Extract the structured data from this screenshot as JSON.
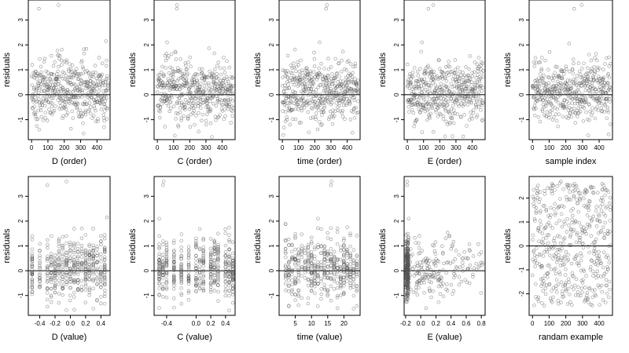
{
  "chart_data": [
    {
      "type": "scatter",
      "xlabel": "D (order)",
      "ylabel": "residuals",
      "xlim": [
        -20,
        480
      ],
      "ylim": [
        -1.8,
        3.8
      ],
      "xticks": [
        "0",
        "100",
        "200",
        "300",
        "400"
      ],
      "yticks": [
        "-1",
        "0",
        "1",
        "2",
        "3"
      ],
      "reference_line_y": 0,
      "series": [
        {
          "n": 470,
          "x_mode": "index",
          "pattern": "order",
          "outliers": [
            [
              45,
              3.45
            ],
            [
              165,
              3.6
            ],
            [
              455,
              2.15
            ]
          ]
        }
      ]
    },
    {
      "type": "scatter",
      "xlabel": "C (order)",
      "ylabel": "residuals",
      "xlim": [
        -20,
        480
      ],
      "ylim": [
        -1.8,
        3.8
      ],
      "xticks": [
        "0",
        "100",
        "200",
        "300",
        "400"
      ],
      "yticks": [
        "-1",
        "0",
        "1",
        "2",
        "3"
      ],
      "reference_line_y": 0,
      "series": [
        {
          "n": 470,
          "x_mode": "index",
          "pattern": "order",
          "outliers": [
            [
              120,
              3.45
            ],
            [
              122,
              3.6
            ],
            [
              60,
              2.1
            ]
          ]
        }
      ]
    },
    {
      "type": "scatter",
      "xlabel": "time (order)",
      "ylabel": "residuals",
      "xlim": [
        -20,
        480
      ],
      "ylim": [
        -1.8,
        3.8
      ],
      "xticks": [
        "0",
        "100",
        "200",
        "300",
        "400"
      ],
      "yticks": [
        "-1",
        "0",
        "1",
        "2",
        "3"
      ],
      "reference_line_y": 0,
      "series": [
        {
          "n": 470,
          "x_mode": "index",
          "pattern": "order",
          "outliers": [
            [
              270,
              3.45
            ],
            [
              275,
              3.6
            ],
            [
              230,
              2.1
            ]
          ]
        }
      ]
    },
    {
      "type": "scatter",
      "xlabel": "E (order)",
      "ylabel": "residuals",
      "xlim": [
        -20,
        480
      ],
      "ylim": [
        -1.8,
        3.8
      ],
      "xticks": [
        "0",
        "100",
        "200",
        "300",
        "400"
      ],
      "yticks": [
        "-1",
        "0",
        "1",
        "2",
        "3"
      ],
      "reference_line_y": 0,
      "series": [
        {
          "n": 470,
          "x_mode": "index",
          "pattern": "order",
          "outliers": [
            [
              130,
              3.45
            ],
            [
              160,
              3.6
            ],
            [
              90,
              2.1
            ]
          ]
        }
      ]
    },
    {
      "type": "scatter",
      "xlabel": "sample index",
      "ylabel": "residuals",
      "xlim": [
        -20,
        480
      ],
      "ylim": [
        -1.8,
        3.8
      ],
      "xticks": [
        "0",
        "100",
        "200",
        "300",
        "400"
      ],
      "yticks": [
        "-1",
        "0",
        "1",
        "2",
        "3"
      ],
      "reference_line_y": 0,
      "series": [
        {
          "n": 470,
          "x_mode": "index",
          "pattern": "order",
          "outliers": [
            [
              250,
              3.45
            ],
            [
              295,
              3.6
            ],
            [
              220,
              2.05
            ]
          ]
        }
      ]
    },
    {
      "type": "scatter",
      "xlabel": "D (value)",
      "ylabel": "residuals",
      "xlim": [
        -0.55,
        0.52
      ],
      "ylim": [
        -1.8,
        3.8
      ],
      "xticks": [
        "-0.4",
        "-0.2",
        "0.0",
        "0.2",
        "0.4"
      ],
      "yticks": [
        "-1",
        "0",
        "1",
        "2",
        "3"
      ],
      "reference_line_y": 0,
      "series": [
        {
          "n": 470,
          "x_mode": "discrete",
          "levels": [
            -0.5,
            -0.4,
            -0.3,
            -0.25,
            -0.2,
            -0.15,
            -0.1,
            -0.05,
            0.0,
            0.05,
            0.1,
            0.15,
            0.2,
            0.25,
            0.3,
            0.35,
            0.4,
            0.45
          ],
          "outliers": [
            [
              -0.3,
              3.45
            ],
            [
              -0.05,
              3.6
            ],
            [
              0.48,
              2.15
            ]
          ]
        }
      ]
    },
    {
      "type": "scatter",
      "xlabel": "C (value)",
      "ylabel": "residuals",
      "xlim": [
        -0.57,
        0.53
      ],
      "ylim": [
        -1.8,
        3.8
      ],
      "xticks": [
        "-0.4",
        "0.0",
        "0.2",
        "0.4"
      ],
      "yticks": [
        "-1",
        "0",
        "1",
        "2",
        "3"
      ],
      "reference_line_y": 0,
      "series": [
        {
          "n": 470,
          "x_mode": "discrete",
          "levels": [
            -0.5,
            -0.45,
            -0.4,
            -0.3,
            -0.2,
            -0.1,
            0.0,
            0.05,
            0.1,
            0.2,
            0.25,
            0.3,
            0.4,
            0.45,
            0.5
          ],
          "outliers": [
            [
              -0.45,
              3.45
            ],
            [
              -0.44,
              3.6
            ],
            [
              -0.5,
              2.1
            ]
          ]
        }
      ]
    },
    {
      "type": "scatter",
      "xlabel": "time (value)",
      "ylabel": "residuals",
      "xlim": [
        0,
        25
      ],
      "ylim": [
        -1.8,
        3.8
      ],
      "xticks": [
        "5",
        "10",
        "15",
        "20"
      ],
      "yticks": [
        "-1",
        "0",
        "1",
        "2",
        "3"
      ],
      "reference_line_y": 0,
      "series": [
        {
          "n": 470,
          "x_mode": "discrete",
          "levels": [
            2,
            3,
            4,
            5,
            6,
            7,
            8,
            9,
            10,
            11,
            12,
            13,
            14,
            15,
            16,
            17,
            18,
            19,
            20,
            21,
            22,
            23,
            24
          ],
          "outliers": [
            [
              16,
              3.45
            ],
            [
              16.2,
              3.6
            ],
            [
              12,
              2.1
            ]
          ]
        }
      ]
    },
    {
      "type": "scatter",
      "xlabel": "E (value)",
      "ylabel": "residuals",
      "xlim": [
        -0.22,
        0.85
      ],
      "ylim": [
        -1.8,
        3.8
      ],
      "xticks": [
        "-0.2",
        "0.0",
        "0.2",
        "0.4",
        "0.6",
        "0.8"
      ],
      "yticks": [
        "-1",
        "0",
        "1",
        "2",
        "3"
      ],
      "reference_line_y": 0,
      "series": [
        {
          "n": 470,
          "x_mode": "skewed",
          "outliers": [
            [
              -0.18,
              3.45
            ],
            [
              -0.18,
              3.6
            ],
            [
              -0.16,
              2.1
            ]
          ]
        }
      ]
    },
    {
      "type": "scatter",
      "xlabel": "randam example",
      "ylabel": "residuals",
      "xlim": [
        -20,
        480
      ],
      "ylim": [
        -2.9,
        2.9
      ],
      "xticks": [
        "0",
        "100",
        "200",
        "300",
        "400"
      ],
      "yticks": [
        "-2",
        "-1",
        "0",
        "1",
        "2"
      ],
      "reference_line_y": 0,
      "series": [
        {
          "n": 470,
          "x_mode": "index",
          "pattern": "uniform",
          "outliers": []
        }
      ]
    }
  ]
}
